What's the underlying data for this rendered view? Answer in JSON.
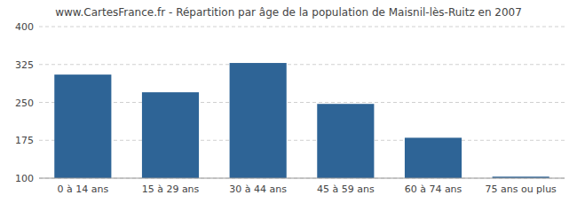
{
  "chart_data": {
    "type": "bar",
    "title": "www.CartesFrance.fr - Répartition par âge de la population de Maisnil-lès-Ruitz en 2007",
    "categories": [
      "0 à 14 ans",
      "15 à 29 ans",
      "30 à 44 ans",
      "45 à 59 ans",
      "60 à 74 ans",
      "75 ans ou plus"
    ],
    "values": [
      305,
      270,
      328,
      247,
      180,
      103
    ],
    "color": "#2e6496",
    "ylim": [
      100,
      400
    ],
    "yticks": [
      100,
      175,
      250,
      325,
      400
    ],
    "grid": true
  }
}
